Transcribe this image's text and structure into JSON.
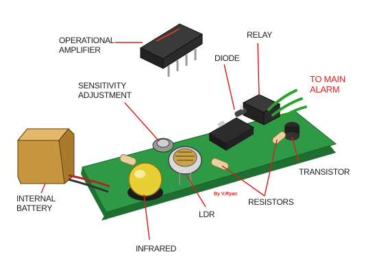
{
  "labels": {
    "op_amp": [
      "OPERATIONAL",
      "AMPLIFIER"
    ],
    "relay": "RELAY",
    "diode": "DIODE",
    "to_main_alarm": [
      "TO MAIN",
      "ALARM"
    ],
    "sensitivity": [
      "SENSITIVITY",
      "ADJUSTMENT"
    ],
    "internal_battery": [
      "INTERNAL",
      "BATTERY"
    ],
    "transistor": "TRANSISTOR",
    "resistors": "RESISTORS",
    "ldr": "LDR",
    "infrared": "INFRARED"
  },
  "author": "By V.Ryan",
  "colors": {
    "board": "#2f9a45",
    "board_side": "#1f6e31",
    "chip": "#2c2c2c",
    "chip_marking": "#d23a2a",
    "battery": "#c99640",
    "wire_green": "#2aa32a",
    "ir_led": "#e8cf36",
    "label_red": "#e0201e",
    "leader_red": "#d42020"
  }
}
